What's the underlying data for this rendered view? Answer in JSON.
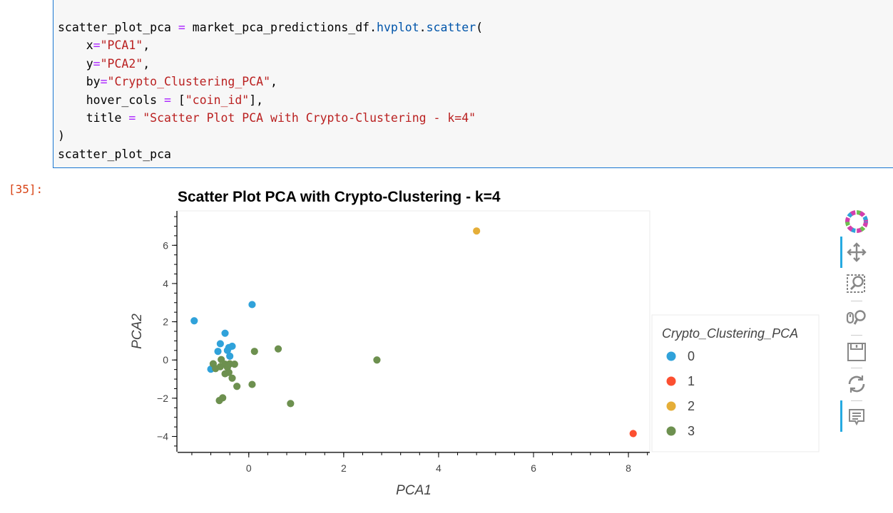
{
  "code_cell": {
    "lines": [
      [
        {
          "t": "scatter_plot_pca "
        },
        {
          "t": "=",
          "c": "op"
        },
        {
          "t": " market_pca_predictions_df."
        },
        {
          "t": "hvplot",
          "c": "attr"
        },
        {
          "t": "."
        },
        {
          "t": "scatter",
          "c": "attr"
        },
        {
          "t": "("
        }
      ],
      [
        {
          "t": "    x"
        },
        {
          "t": "=",
          "c": "op"
        },
        {
          "t": "\"PCA1\"",
          "c": "str"
        },
        {
          "t": ","
        }
      ],
      [
        {
          "t": "    y"
        },
        {
          "t": "=",
          "c": "op"
        },
        {
          "t": "\"PCA2\"",
          "c": "str"
        },
        {
          "t": ","
        }
      ],
      [
        {
          "t": "    by"
        },
        {
          "t": "=",
          "c": "op"
        },
        {
          "t": "\"Crypto_Clustering_PCA\"",
          "c": "str"
        },
        {
          "t": ","
        }
      ],
      [
        {
          "t": "    hover_cols "
        },
        {
          "t": "=",
          "c": "op"
        },
        {
          "t": " ["
        },
        {
          "t": "\"coin_id\"",
          "c": "str"
        },
        {
          "t": "],"
        }
      ],
      [
        {
          "t": "    title "
        },
        {
          "t": "=",
          "c": "op"
        },
        {
          "t": " "
        },
        {
          "t": "\"Scatter Plot PCA with Crypto-Clustering - k=4\"",
          "c": "str"
        }
      ],
      [
        {
          "t": ")"
        }
      ],
      [
        {
          "t": "scatter_plot_pca"
        }
      ]
    ]
  },
  "output_prompt": "[35]:",
  "toolbar": {
    "tools": [
      "bokeh-logo-icon",
      "pan-icon",
      "box-zoom-icon",
      "wheel-zoom-icon",
      "save-icon",
      "reset-icon",
      "hover-icon"
    ]
  },
  "colors": {
    "cluster_0": "#30a2da",
    "cluster_1": "#fc4f30",
    "cluster_2": "#e5ae38",
    "cluster_3": "#6d904f"
  },
  "chart_data": {
    "type": "scatter",
    "title": "Scatter Plot PCA with Crypto-Clustering - k=4",
    "xlabel": "PCA1",
    "ylabel": "PCA2",
    "xlim": [
      -1.5,
      8.45
    ],
    "ylim": [
      -4.8,
      7.8
    ],
    "xticks": [
      0,
      2,
      4,
      6,
      8
    ],
    "yticks": [
      -4,
      -2,
      0,
      2,
      4,
      6
    ],
    "grid": false,
    "legend_title": "Crypto_Clustering_PCA",
    "legend_position": "right",
    "series": [
      {
        "name": "0",
        "color": "#30a2da",
        "points": [
          [
            -1.15,
            2.05
          ],
          [
            0.07,
            2.9
          ],
          [
            -0.5,
            1.4
          ],
          [
            -0.6,
            0.85
          ],
          [
            -0.35,
            0.72
          ],
          [
            -0.45,
            0.5
          ],
          [
            -0.65,
            0.45
          ],
          [
            -0.4,
            0.2
          ],
          [
            -0.42,
            0.65
          ],
          [
            -0.8,
            -0.48
          ]
        ]
      },
      {
        "name": "1",
        "color": "#fc4f30",
        "points": [
          [
            8.1,
            -3.85
          ]
        ]
      },
      {
        "name": "2",
        "color": "#e5ae38",
        "points": [
          [
            4.8,
            6.75
          ]
        ]
      },
      {
        "name": "3",
        "color": "#6d904f",
        "points": [
          [
            0.12,
            0.45
          ],
          [
            0.62,
            0.58
          ],
          [
            2.7,
            0.0
          ],
          [
            -0.58,
            0.02
          ],
          [
            -0.75,
            -0.2
          ],
          [
            -0.5,
            -0.22
          ],
          [
            -0.4,
            -0.2
          ],
          [
            -0.3,
            -0.22
          ],
          [
            -0.7,
            -0.45
          ],
          [
            -0.6,
            -0.35
          ],
          [
            -0.45,
            -0.38
          ],
          [
            -0.5,
            -0.72
          ],
          [
            -0.42,
            -0.65
          ],
          [
            -0.35,
            -0.95
          ],
          [
            -0.25,
            -1.38
          ],
          [
            0.07,
            -1.28
          ],
          [
            -0.55,
            -1.98
          ],
          [
            -0.62,
            -2.12
          ],
          [
            0.88,
            -2.28
          ]
        ]
      }
    ]
  }
}
